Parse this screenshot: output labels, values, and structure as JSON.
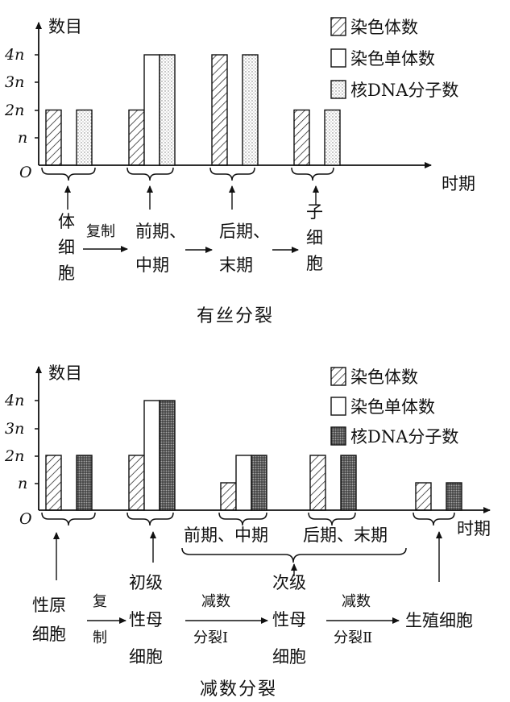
{
  "colors": {
    "ink": "#111111",
    "stipple": "#bdbdbd",
    "dark": "#4a4a4a",
    "paper": "#ffffff"
  },
  "legend": {
    "chromosome": "染色体数",
    "chromatid": "染色单体数",
    "dna": "核DNA分子数"
  },
  "mitosis": {
    "ylabel": "数目",
    "xlabel": "时期",
    "origin": "O",
    "yticks": [
      "4n",
      "3n",
      "2n",
      "n"
    ],
    "caption": "有丝分裂",
    "stages": [
      {
        "name": "体细胞",
        "chromosome": 2,
        "chromatid": 0,
        "dna": 2
      },
      {
        "name": "前期、中期",
        "chromosome": 2,
        "chromatid": 4,
        "dna": 4
      },
      {
        "name": "后期、末期",
        "chromosome": 4,
        "chromatid": 0,
        "dna": 4
      },
      {
        "name": "子细胞",
        "chromosome": 2,
        "chromatid": 0,
        "dna": 2
      }
    ],
    "flow": {
      "cell": [
        "体",
        "细",
        "胞"
      ],
      "copy": "复制",
      "pro": [
        "前期、",
        "中期"
      ],
      "ana": [
        "后期、",
        "末期"
      ],
      "daughter": [
        "子",
        "细",
        "胞"
      ]
    }
  },
  "meiosis": {
    "ylabel": "数目",
    "xlabel": "时期",
    "origin": "O",
    "yticks": [
      "4n",
      "3n",
      "2n",
      "n"
    ],
    "caption": "减数分裂",
    "stages": [
      {
        "name": "性原细胞",
        "chromosome": 2,
        "chromatid": 0,
        "dna": 2
      },
      {
        "name": "初级性母细胞",
        "chromosome": 2,
        "chromatid": 4,
        "dna": 4
      },
      {
        "name": "次级性母细胞 前期、中期",
        "chromosome": 1,
        "chromatid": 2,
        "dna": 2
      },
      {
        "name": "次级性母细胞 后期、末期",
        "chromosome": 2,
        "chromatid": 0,
        "dna": 2
      },
      {
        "name": "生殖细胞",
        "chromosome": 1,
        "chromatid": 0,
        "dna": 1
      }
    ],
    "sub_pro": "前期、中期",
    "sub_ana": "后期、末期",
    "flow": {
      "cell": [
        "性原",
        "细胞"
      ],
      "copy": [
        "复",
        "制"
      ],
      "primary": [
        "初级",
        "性母",
        "细胞"
      ],
      "m1": [
        "减数",
        "分裂Ⅰ"
      ],
      "secondary": [
        "次级",
        "性母",
        "细胞"
      ],
      "m2": [
        "减数",
        "分裂Ⅱ"
      ],
      "gamete": "生殖细胞"
    }
  }
}
